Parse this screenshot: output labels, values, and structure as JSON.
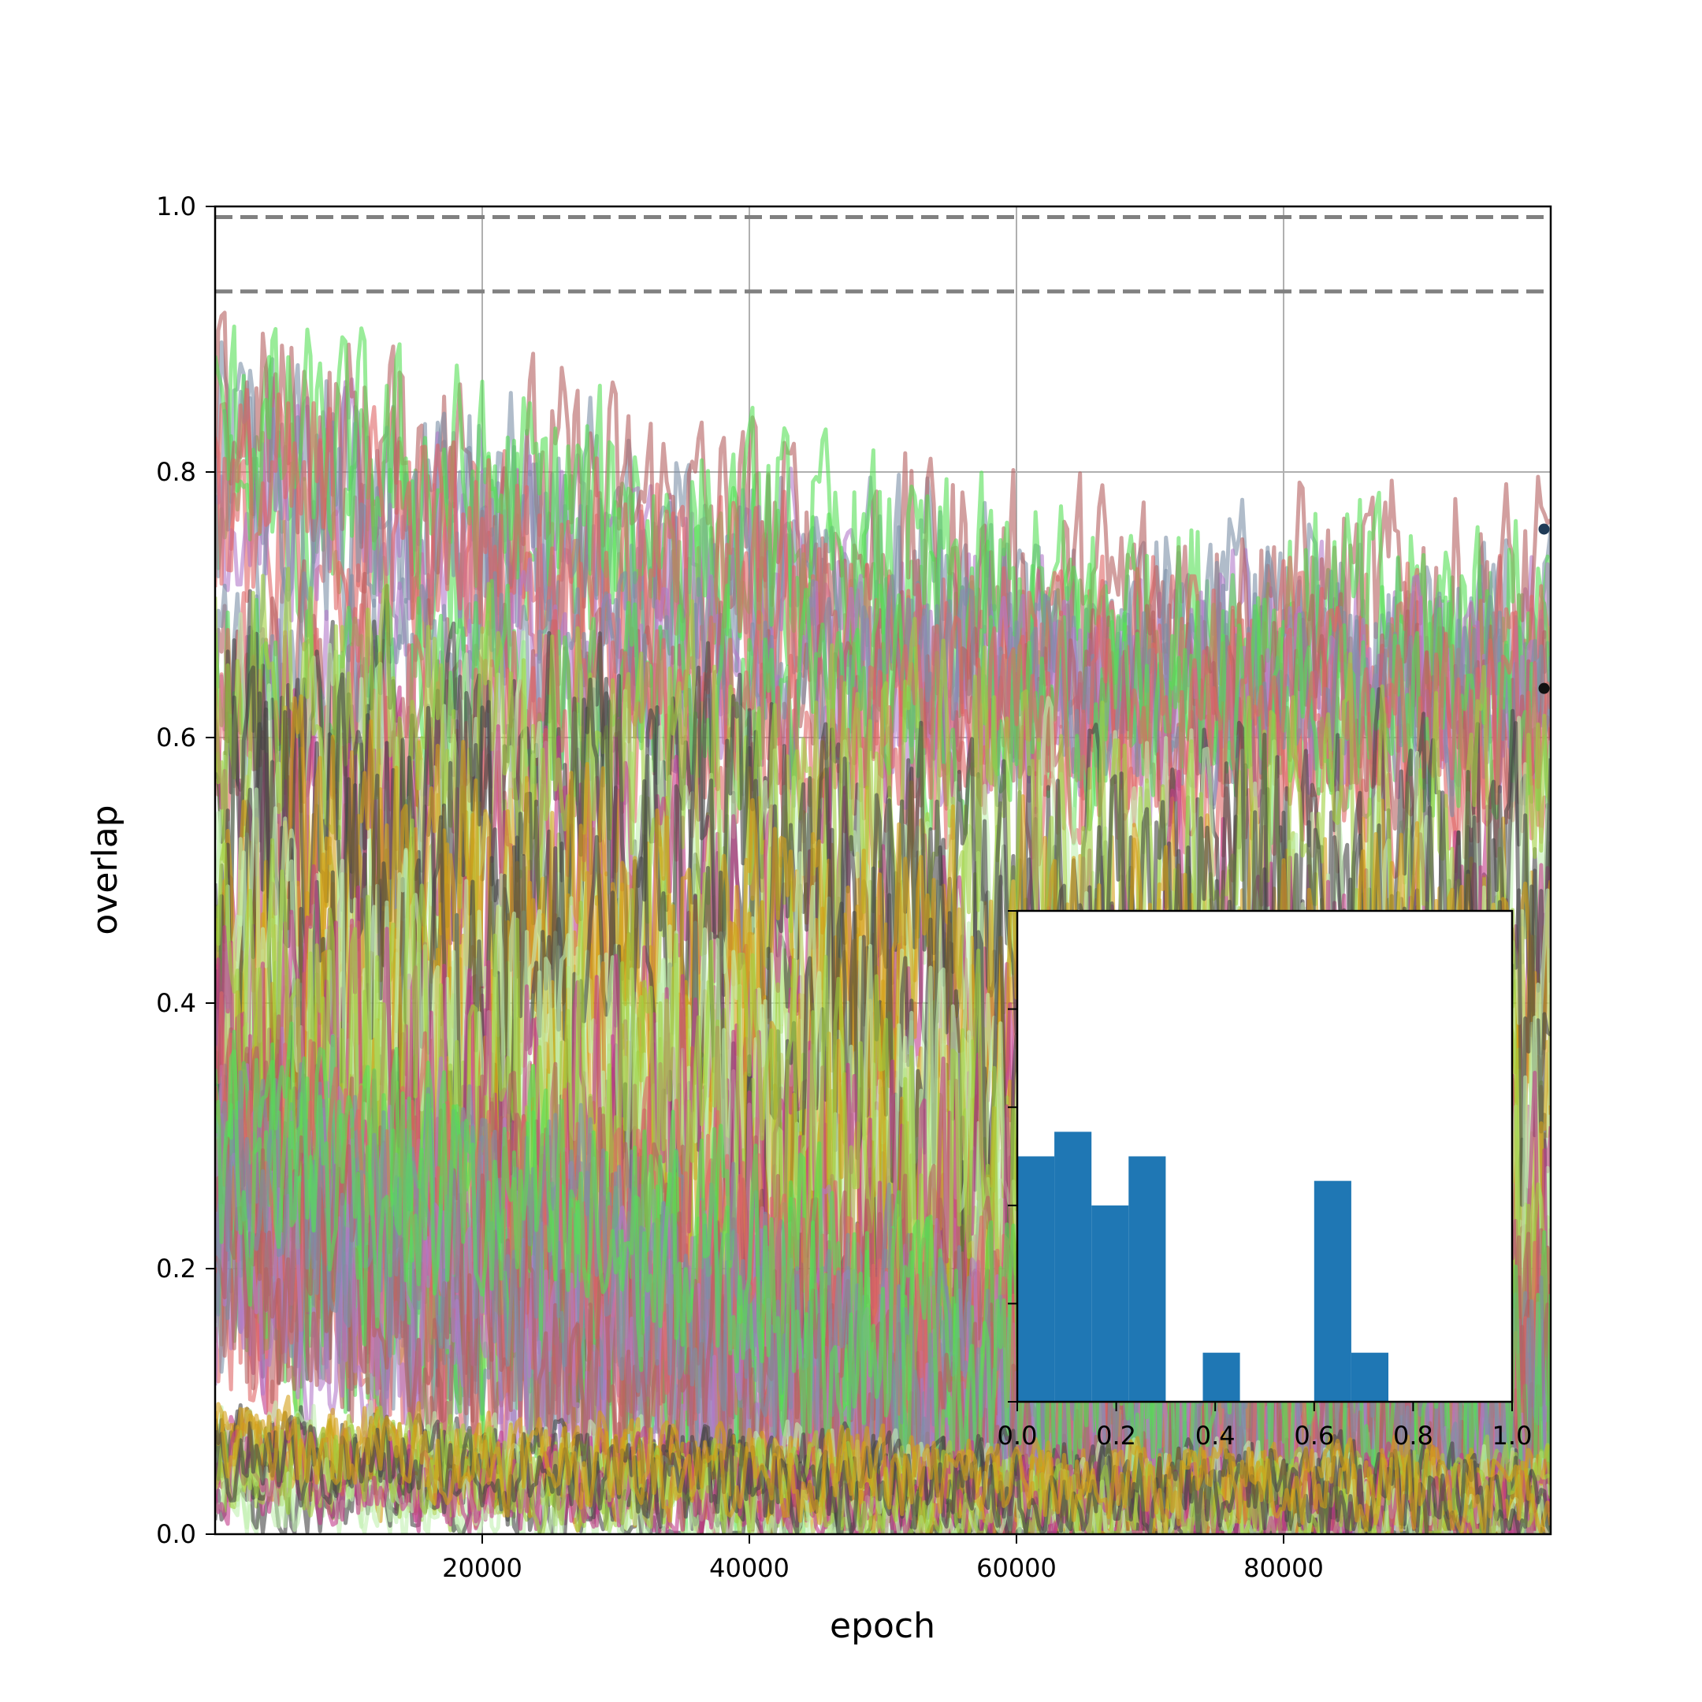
{
  "chart_data": [
    {
      "type": "line",
      "title": "",
      "xlabel": "epoch",
      "ylabel": "overlap",
      "xlim": [
        0,
        100000
      ],
      "ylim": [
        0.0,
        1.0
      ],
      "x_ticks": [
        20000,
        40000,
        60000,
        80000
      ],
      "x_tick_labels": [
        "20000",
        "40000",
        "60000",
        "80000"
      ],
      "y_ticks": [
        0.0,
        0.2,
        0.4,
        0.6,
        0.8,
        1.0
      ],
      "y_tick_labels": [
        "0.0",
        "0.2",
        "0.4",
        "0.6",
        "0.8",
        "1.0"
      ],
      "grid": true,
      "reference_lines": [
        {
          "y": 0.992,
          "style": "dashed",
          "color": "#808080"
        },
        {
          "y": 0.936,
          "style": "dashed",
          "color": "#808080"
        }
      ],
      "series_count": 72,
      "series_groups": [
        {
          "level": 0.66,
          "early_level": 0.8,
          "noise": 0.05,
          "count": 8
        },
        {
          "level": 0.6,
          "early_level": 0.62,
          "noise": 0.045,
          "count": 6
        },
        {
          "level": 0.45,
          "early_level": 0.55,
          "noise": 0.07,
          "count": 8
        },
        {
          "level": 0.25,
          "early_level": 0.35,
          "noise": 0.09,
          "count": 14
        },
        {
          "level": 0.08,
          "early_level": 0.25,
          "noise": 0.06,
          "count": 18
        },
        {
          "level": 0.02,
          "early_level": 0.05,
          "noise": 0.02,
          "count": 18
        }
      ],
      "end_markers": [
        {
          "x": 99500,
          "y": 0.757,
          "color": "#1f3b57"
        },
        {
          "x": 99500,
          "y": 0.637,
          "color": "#111111"
        }
      ],
      "palette": [
        "#7b8fa6",
        "#8fbc8f",
        "#c1f0b0",
        "#9b5d8e",
        "#b279c9",
        "#5b4b6e",
        "#444444",
        "#e0905e",
        "#55e055",
        "#2aa1c9",
        "#c23b8a",
        "#6aa84f",
        "#b45f5f",
        "#3d6b8a",
        "#d4a017",
        "#8e44ad",
        "#e06666",
        "#38b07b",
        "#a0d040",
        "#9e7b6a"
      ]
    },
    {
      "type": "bar",
      "title": "",
      "xlabel": "",
      "ylabel": "",
      "xlim": [
        0.0,
        1.0
      ],
      "ylim": [
        0,
        10
      ],
      "x_ticks": [
        0.0,
        0.2,
        0.4,
        0.6,
        0.8,
        1.0
      ],
      "x_tick_labels": [
        "0.0",
        "0.2",
        "0.4",
        "0.6",
        "0.8",
        "1.0"
      ],
      "y_ticks": [
        0,
        2,
        4,
        6,
        8,
        10
      ],
      "y_tick_labels": [],
      "bin_width": 0.075,
      "bins": [
        {
          "x0": 0.0,
          "value": 5.0
        },
        {
          "x0": 0.075,
          "value": 5.5
        },
        {
          "x0": 0.15,
          "value": 4.0
        },
        {
          "x0": 0.225,
          "value": 5.0
        },
        {
          "x0": 0.3,
          "value": 0.0
        },
        {
          "x0": 0.375,
          "value": 1.0
        },
        {
          "x0": 0.45,
          "value": 0.0
        },
        {
          "x0": 0.525,
          "value": 0.0
        },
        {
          "x0": 0.6,
          "value": 4.5
        },
        {
          "x0": 0.675,
          "value": 1.0
        },
        {
          "x0": 0.75,
          "value": 0.0
        },
        {
          "x0": 0.825,
          "value": 0.0
        },
        {
          "x0": 0.9,
          "value": 0.0
        }
      ],
      "color": "#1f77b4"
    }
  ]
}
